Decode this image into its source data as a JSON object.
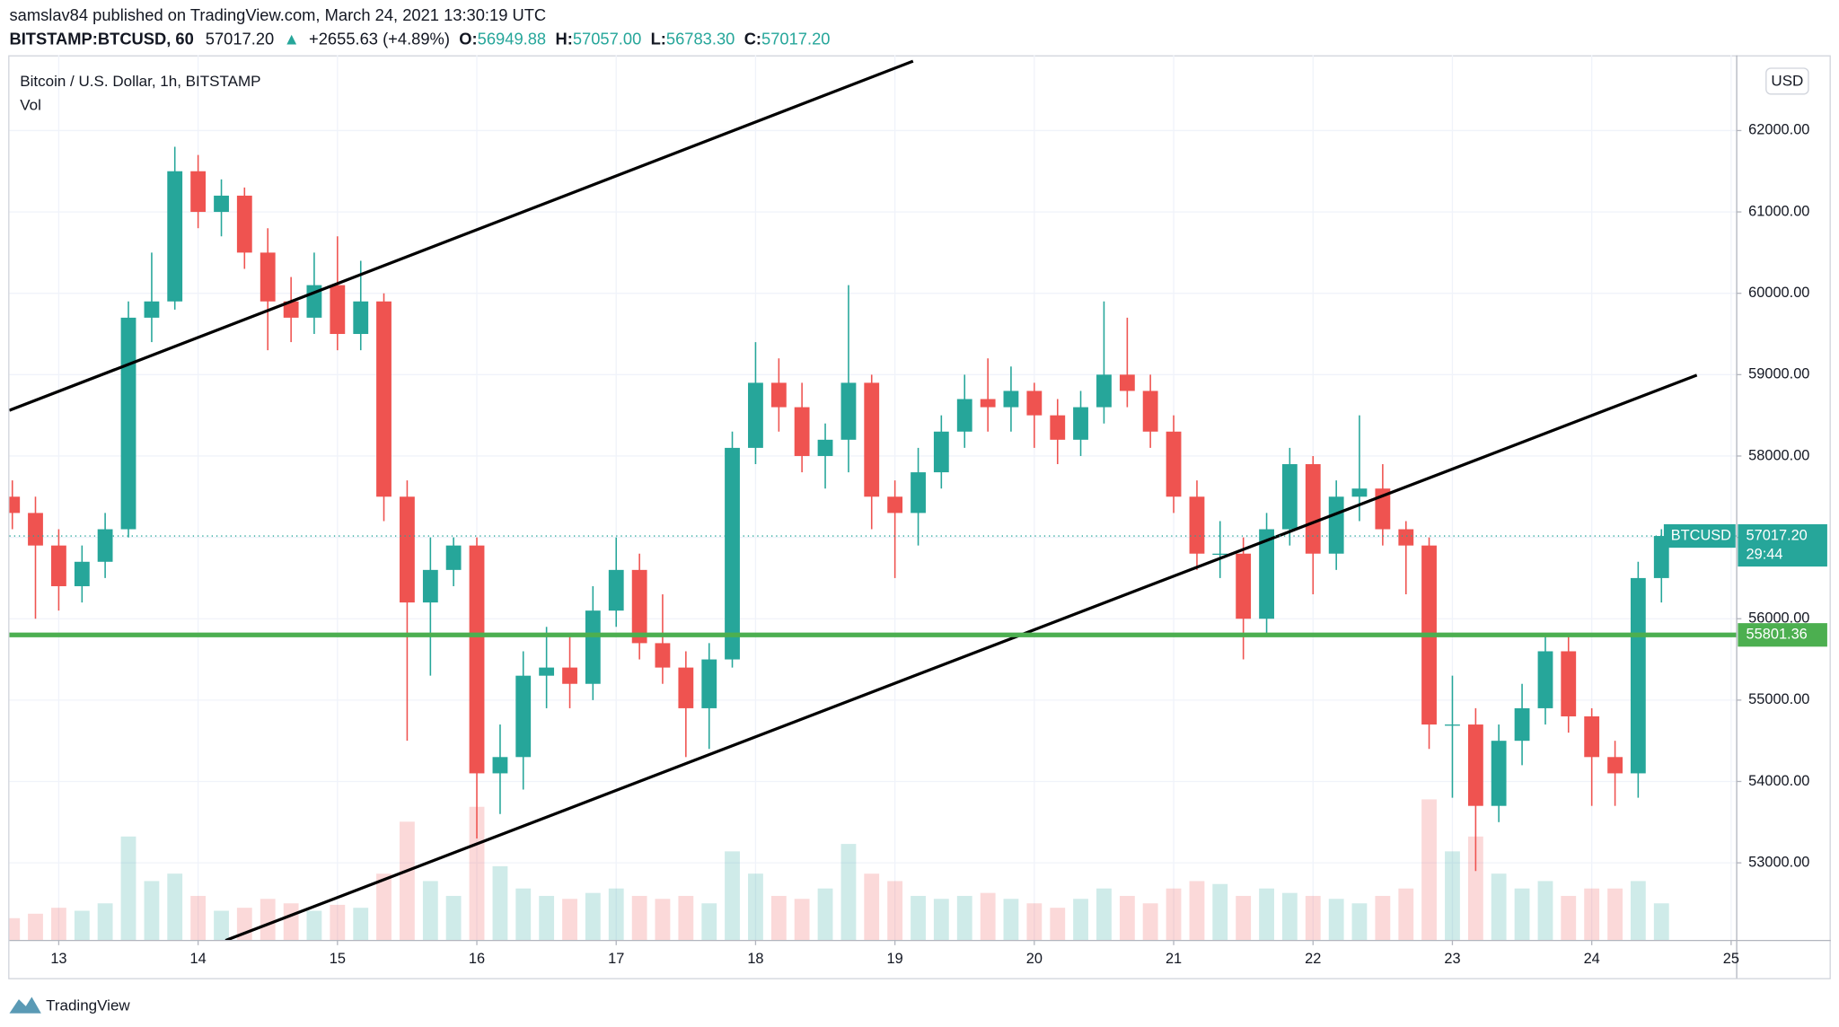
{
  "header": {
    "publisher": "samslav84 published on TradingView.com, March 24, 2021 13:30:19 UTC",
    "symbol": "BITSTAMP:BTCUSD, 60",
    "last": "57017.20",
    "direction_symbol": "▲",
    "change": "+2655.63 (+4.89%)",
    "ohlc": [
      {
        "label": "O:",
        "value": "56949.88"
      },
      {
        "label": "H:",
        "value": "57057.00"
      },
      {
        "label": "L:",
        "value": "56783.30"
      },
      {
        "label": "C:",
        "value": "57017.20"
      }
    ]
  },
  "chart_data": {
    "type": "candlestick",
    "title": "Bitcoin / U.S. Dollar, 1h, BITSTAMP",
    "volume_label": "Vol",
    "currency": "USD",
    "up_color": "#26a69a",
    "down_color": "#ef5350",
    "grid": true,
    "x": [
      12.667,
      12.833,
      13.0,
      13.167,
      13.333,
      13.5,
      13.667,
      13.833,
      14.0,
      14.167,
      14.333,
      14.5,
      14.667,
      14.833,
      15.0,
      15.167,
      15.333,
      15.5,
      15.667,
      15.833,
      16.0,
      16.167,
      16.333,
      16.5,
      16.667,
      16.833,
      17.0,
      17.167,
      17.333,
      17.5,
      17.667,
      17.833,
      18.0,
      18.167,
      18.333,
      18.5,
      18.667,
      18.833,
      19.0,
      19.167,
      19.333,
      19.5,
      19.667,
      19.833,
      20.0,
      20.167,
      20.333,
      20.5,
      20.667,
      20.833,
      21.0,
      21.167,
      21.333,
      21.5,
      21.667,
      21.833,
      22.0,
      22.167,
      22.333,
      22.5,
      22.667,
      22.833,
      23.0,
      23.167,
      23.333,
      23.5,
      23.667,
      23.833,
      24.0,
      24.167,
      24.333,
      24.5
    ],
    "open": [
      57500,
      57300,
      56900,
      56400,
      56700,
      57100,
      59700,
      59900,
      61500,
      61000,
      61200,
      60500,
      59900,
      59700,
      60100,
      59500,
      59900,
      57500,
      56200,
      56600,
      56900,
      54100,
      54300,
      55300,
      55400,
      55200,
      56100,
      56600,
      55700,
      55400,
      54900,
      55500,
      58100,
      58900,
      58600,
      58000,
      58200,
      58900,
      57500,
      57300,
      57800,
      58300,
      58700,
      58600,
      58800,
      58500,
      58200,
      58600,
      59000,
      58800,
      58300,
      57500,
      56800,
      56800,
      56000,
      57100,
      57900,
      56800,
      57500,
      57600,
      57100,
      56900,
      54700,
      54700,
      53700,
      54500,
      54900,
      55600,
      54800,
      54300,
      54100,
      56500
    ],
    "high": [
      57700,
      57500,
      57100,
      56900,
      57300,
      59900,
      60500,
      61800,
      61700,
      61400,
      61300,
      60800,
      60200,
      60500,
      60700,
      60400,
      60000,
      57700,
      57000,
      57000,
      57000,
      54700,
      55600,
      55900,
      55800,
      56400,
      57000,
      56800,
      56300,
      55600,
      55700,
      58300,
      59400,
      59200,
      58900,
      58400,
      60100,
      59000,
      57700,
      58100,
      58500,
      59000,
      59200,
      59100,
      58900,
      58700,
      58800,
      59900,
      59700,
      59000,
      58500,
      57700,
      57200,
      57000,
      57300,
      58100,
      58000,
      57700,
      58500,
      57900,
      57200,
      57000,
      55300,
      54900,
      54700,
      55200,
      55800,
      55800,
      54900,
      54500,
      56700,
      57100
    ],
    "low": [
      57100,
      56000,
      56100,
      56200,
      56500,
      57000,
      59400,
      59800,
      60800,
      60700,
      60300,
      59300,
      59400,
      59500,
      59300,
      59300,
      57200,
      54500,
      55300,
      56400,
      53300,
      53600,
      53900,
      54900,
      54900,
      55000,
      55900,
      55500,
      55200,
      54300,
      54400,
      55400,
      57900,
      58300,
      57800,
      57600,
      57800,
      57100,
      56500,
      56900,
      57600,
      58100,
      58300,
      58300,
      58100,
      57900,
      58000,
      58400,
      58600,
      58100,
      57300,
      56600,
      56500,
      55500,
      55800,
      56900,
      56300,
      56600,
      57200,
      56900,
      56300,
      54400,
      53800,
      52900,
      53500,
      54200,
      54700,
      54600,
      53700,
      53700,
      53800,
      56200
    ],
    "close": [
      57300,
      56900,
      56400,
      56700,
      57100,
      59700,
      59900,
      61500,
      61000,
      61200,
      60500,
      59900,
      59700,
      60100,
      59500,
      59900,
      57500,
      56200,
      56600,
      56900,
      54100,
      54300,
      55300,
      55400,
      55200,
      56100,
      56600,
      55700,
      55400,
      54900,
      55500,
      58100,
      58900,
      58600,
      58000,
      58200,
      58900,
      57500,
      57300,
      57800,
      58300,
      58700,
      58600,
      58800,
      58500,
      58200,
      58600,
      59000,
      58800,
      58300,
      57500,
      56800,
      56800,
      56000,
      57100,
      57900,
      56800,
      57500,
      57600,
      57100,
      56900,
      54700,
      54700,
      53700,
      54500,
      54900,
      55600,
      54800,
      54300,
      54100,
      56500,
      57017.2
    ],
    "volume": [
      15,
      18,
      22,
      20,
      25,
      70,
      40,
      45,
      30,
      20,
      22,
      28,
      25,
      20,
      24,
      22,
      45,
      80,
      40,
      30,
      90,
      50,
      35,
      30,
      28,
      32,
      35,
      30,
      28,
      30,
      25,
      60,
      45,
      30,
      28,
      35,
      65,
      45,
      40,
      30,
      28,
      30,
      32,
      28,
      25,
      22,
      28,
      35,
      30,
      25,
      35,
      40,
      38,
      30,
      35,
      32,
      30,
      28,
      25,
      30,
      35,
      95,
      60,
      70,
      45,
      35,
      40,
      30,
      35,
      35,
      40,
      25
    ],
    "xlim": [
      12.646,
      25.04
    ],
    "ylim": [
      52046,
      62853
    ],
    "xticks": [
      13,
      14,
      15,
      16,
      17,
      18,
      19,
      20,
      21,
      22,
      23,
      24,
      25
    ],
    "yticks": [
      {
        "value": 53000,
        "label": "53000.00"
      },
      {
        "value": 54000,
        "label": "54000.00"
      },
      {
        "value": 55000,
        "label": "55000.00"
      },
      {
        "value": 56000,
        "label": "56000.00"
      },
      {
        "value": 57000,
        "label": "57000.00"
      },
      {
        "value": 58000,
        "label": "58000.00"
      },
      {
        "value": 59000,
        "label": "59000.00"
      },
      {
        "value": 60000,
        "label": "60000.00"
      },
      {
        "value": 61000,
        "label": "61000.00"
      },
      {
        "value": 62000,
        "label": "62000.00"
      }
    ],
    "trendlines": [
      {
        "color": "#000000",
        "x": [
          12.646,
          19.13
        ],
        "y": [
          58561,
          62853
        ]
      },
      {
        "color": "#000000",
        "x": [
          14.197,
          24.754
        ],
        "y": [
          52046,
          58994
        ]
      }
    ],
    "hlines": [
      {
        "value": 55801.36,
        "label": "55801.36",
        "color": "#4caf50"
      }
    ],
    "last_price": {
      "name": "BTCUSD",
      "value": 57017.2,
      "label": "57017.20",
      "countdown": "29:44",
      "color": "#26a69a"
    }
  },
  "footer": {
    "brand": "TradingView"
  }
}
